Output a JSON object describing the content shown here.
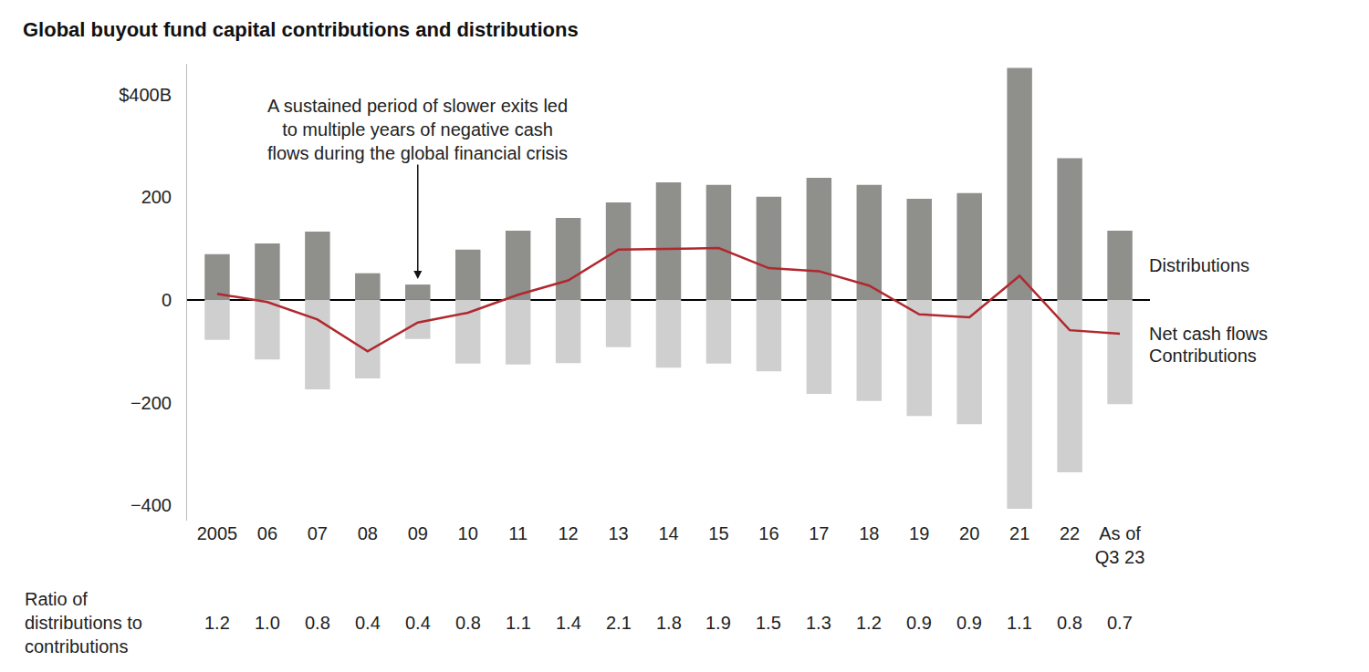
{
  "chart_data": {
    "type": "bar",
    "title": "Global buyout fund capital contributions and distributions",
    "categories": [
      "2005",
      "06",
      "07",
      "08",
      "09",
      "10",
      "11",
      "12",
      "13",
      "14",
      "15",
      "16",
      "17",
      "18",
      "19",
      "20",
      "21",
      "22",
      "As of\nQ3 23"
    ],
    "series": [
      {
        "name": "Distributions",
        "type": "bar",
        "color": "#8f8f8c",
        "values": [
          89,
          110,
          133,
          52,
          30,
          98,
          135,
          160,
          190,
          229,
          224,
          201,
          238,
          224,
          197,
          208,
          452,
          276,
          135
        ]
      },
      {
        "name": "Contributions",
        "type": "bar",
        "color": "#cfcfcf",
        "values": [
          -78,
          -116,
          -174,
          -153,
          -76,
          -124,
          -126,
          -123,
          -92,
          -132,
          -124,
          -139,
          -183,
          -197,
          -226,
          -242,
          -407,
          -336,
          -203
        ]
      },
      {
        "name": "Net cash flows",
        "type": "line",
        "color": "#b0282e",
        "values": [
          12,
          -4,
          -38,
          -100,
          -44,
          -25,
          10,
          38,
          98,
          99,
          101,
          62,
          56,
          28,
          -28,
          -34,
          47,
          -59,
          -66
        ]
      }
    ],
    "ylim": [
      -430,
      460
    ],
    "yticks": [
      {
        "value": -400,
        "label": "−400"
      },
      {
        "value": -200,
        "label": "−200"
      },
      0,
      200,
      {
        "value": 400,
        "label": "$400B"
      }
    ],
    "grid": false,
    "legend": "none",
    "annotations": [
      {
        "text": "A sustained period of slower exits led\nto multiple years of negative cash\nflows during the global financial crisis",
        "x": "09"
      }
    ],
    "ratio": {
      "label": "Ratio of\ndistributions to\ncontributions",
      "values": [
        1.2,
        1.0,
        0.8,
        0.4,
        0.4,
        0.8,
        1.1,
        1.4,
        2.1,
        1.8,
        1.9,
        1.5,
        1.3,
        1.2,
        0.9,
        0.9,
        1.1,
        0.8,
        0.7
      ],
      "value_labels": [
        "1.2",
        "1.0",
        "0.8",
        "0.4",
        "0.4",
        "0.8",
        "1.1",
        "1.4",
        "2.1",
        "1.8",
        "1.9",
        "1.5",
        "1.3",
        "1.2",
        "0.9",
        "0.9",
        "1.1",
        "0.8",
        "0.7"
      ]
    }
  }
}
